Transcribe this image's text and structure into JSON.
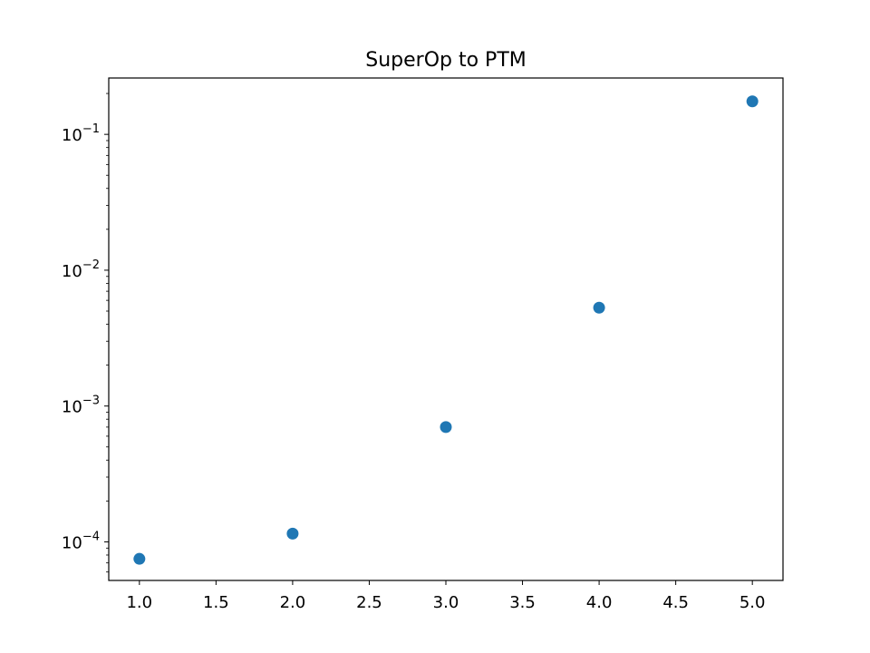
{
  "chart_data": {
    "type": "scatter",
    "title": "SuperOp to PTM",
    "xlabel": "",
    "ylabel": "",
    "x": [
      1.0,
      2.0,
      3.0,
      4.0,
      5.0
    ],
    "y": [
      7.5e-05,
      0.000115,
      0.0007,
      0.0053,
      0.175
    ],
    "xlim": [
      0.8,
      5.2
    ],
    "ylim": [
      5.2e-05,
      0.26
    ],
    "yscale": "log",
    "x_ticks": [
      1.0,
      1.5,
      2.0,
      2.5,
      3.0,
      3.5,
      4.0,
      4.5,
      5.0
    ],
    "x_tick_labels": [
      "1.0",
      "1.5",
      "2.0",
      "2.5",
      "3.0",
      "3.5",
      "4.0",
      "4.5",
      "5.0"
    ],
    "y_ticks": [
      0.0001,
      0.001,
      0.01,
      0.1
    ],
    "y_tick_labels": [
      {
        "base": "10",
        "exp": "−4"
      },
      {
        "base": "10",
        "exp": "−3"
      },
      {
        "base": "10",
        "exp": "−2"
      },
      {
        "base": "10",
        "exp": "−1"
      }
    ],
    "grid": false,
    "legend": "none",
    "color": "#1f77b4"
  }
}
